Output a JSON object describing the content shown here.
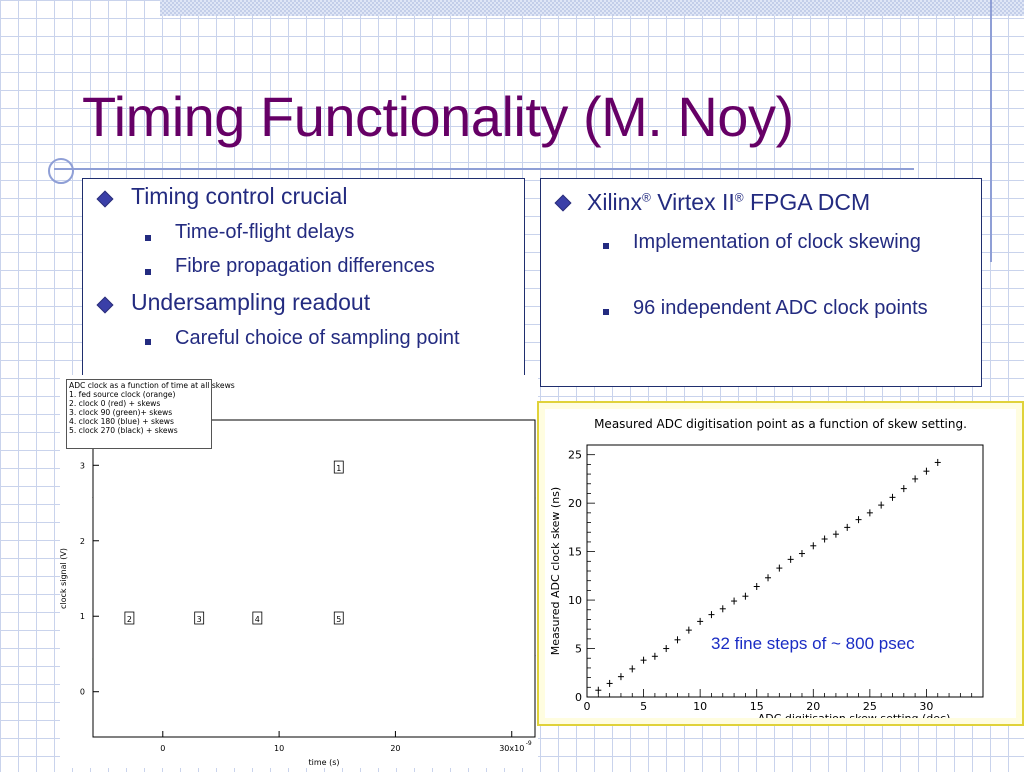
{
  "slide": {
    "title": "Timing Functionality (M. Noy)",
    "left_panel": {
      "items": [
        {
          "text": "Timing control crucial",
          "sub": [
            "Time-of-flight delays",
            "Fibre propagation differences"
          ]
        },
        {
          "text": "Undersampling readout",
          "sub": [
            "Careful choice of sampling point"
          ]
        }
      ]
    },
    "right_panel": {
      "item_part1": "Xilinx",
      "reg": "®",
      "item_part2": " Virtex II",
      "item_part3": " FPGA DCM",
      "sub": [
        "Implementation of clock skewing",
        "96 independent ADC clock points"
      ]
    }
  },
  "colors": {
    "title": "#660066",
    "text": "#232b80",
    "grid": "#c9d3ec",
    "annotation": "#1a2cc4"
  },
  "chart_data": [
    {
      "type": "line",
      "legend": [
        "ADC clock as a function of time at all skews",
        "1. fed source clock (orange)",
        "2. clock 0 (red) + skews",
        "3. clock 90 (green)+ skews",
        "4. clock 180 (blue) + skews",
        "5. clock 270 (black) + skews"
      ],
      "xlabel": "time (s)",
      "ylabel": "clock signal (V)",
      "x_ticks": [
        "0",
        "10",
        "20",
        "30x10"
      ],
      "x_exponent": "-9",
      "y_ticks": [
        "0",
        "1",
        "2",
        "3"
      ],
      "markers": [
        "1",
        "2",
        "3",
        "4",
        "5"
      ],
      "xlim": [
        -6,
        32
      ],
      "ylim": [
        -0.6,
        3.6
      ],
      "period": 20,
      "series": [
        {
          "name": "fed source clock (orange)",
          "color": "#f0b040",
          "phase": -2
        },
        {
          "name": "clock 0 (red) + skews",
          "color": "#e02020",
          "phase": 0
        },
        {
          "name": "clock 90 (green)+ skews",
          "color": "#20b020",
          "phase": 5
        },
        {
          "name": "clock 180 (blue) + skews",
          "color": "#2030e0",
          "phase": 10
        },
        {
          "name": "clock 270 (black) + skews",
          "color": "#000000",
          "phase": 15
        }
      ]
    },
    {
      "type": "scatter",
      "title": "Measured ADC digitisation point as a function of skew setting.",
      "xlabel": "ADC digitisation skew setting (dec)",
      "ylabel": "Measured ADC clock skew (ns)",
      "x_ticks": [
        0,
        5,
        10,
        15,
        20,
        25,
        30
      ],
      "y_ticks": [
        0,
        5,
        10,
        15,
        20,
        25
      ],
      "xlim": [
        0,
        35
      ],
      "ylim": [
        0,
        26
      ],
      "annotation": "32 fine steps of ~ 800 psec",
      "x": [
        1,
        2,
        3,
        4,
        5,
        6,
        7,
        8,
        9,
        10,
        11,
        12,
        13,
        14,
        15,
        16,
        17,
        18,
        19,
        20,
        21,
        22,
        23,
        24,
        25,
        26,
        27,
        28,
        29,
        30,
        31
      ],
      "y": [
        0.7,
        1.4,
        2.1,
        2.9,
        3.8,
        4.2,
        5.0,
        5.9,
        6.9,
        7.8,
        8.5,
        9.1,
        9.9,
        10.4,
        11.4,
        12.3,
        13.3,
        14.2,
        14.8,
        15.6,
        16.3,
        16.8,
        17.5,
        18.3,
        19.0,
        19.8,
        20.6,
        21.5,
        22.5,
        23.3,
        24.2
      ]
    }
  ]
}
